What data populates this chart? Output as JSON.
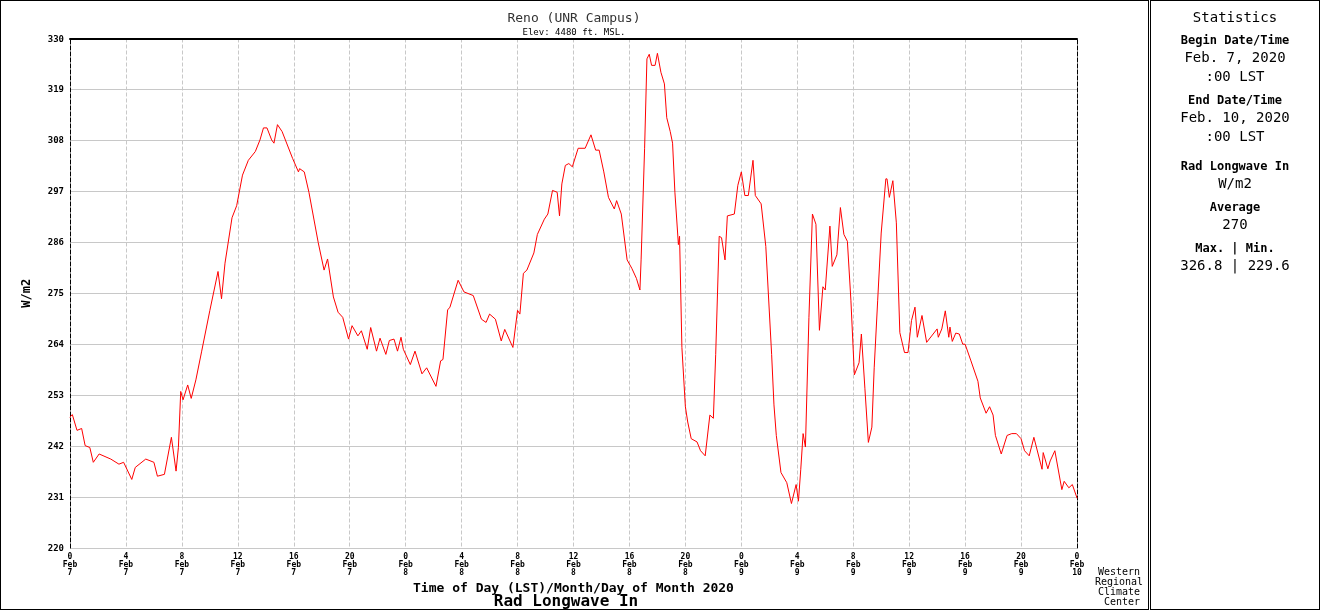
{
  "chart_data": [
    {
      "type": "line",
      "title": "Reno (UNR Campus)",
      "subtitle": "Elev: 4480 ft. MSL.",
      "xlabel": "Time of Day (LST)/Month/Day of Month 2020",
      "ylabel": "W/m2",
      "annotations": [
        "Rad Longwave In",
        "Western Regional Climate Center"
      ],
      "x": [
        "2020-02-07T00:00",
        "2020-02-07T00:10",
        "2020-02-07T00:30",
        "2020-02-07T00:50",
        "2020-02-07T01:05",
        "2020-02-07T01:25",
        "2020-02-07T01:40",
        "2020-02-07T02:05",
        "2020-02-07T02:55",
        "2020-02-07T03:30",
        "2020-02-07T03:50",
        "2020-02-07T04:25",
        "2020-02-07T04:40",
        "2020-02-07T05:25",
        "2020-02-07T06:00",
        "2020-02-07T06:15",
        "2020-02-07T06:45",
        "2020-02-07T07:15",
        "2020-02-07T07:35",
        "2020-02-07T07:45",
        "2020-02-07T07:55",
        "2020-02-07T08:05",
        "2020-02-07T08:25",
        "2020-02-07T08:40",
        "2020-02-07T09:00",
        "2020-02-07T09:25",
        "2020-02-07T10:00",
        "2020-02-07T10:35",
        "2020-02-07T10:50",
        "2020-02-07T11:05",
        "2020-02-07T11:35",
        "2020-02-07T11:55",
        "2020-02-07T12:20",
        "2020-02-07T12:45",
        "2020-02-07T13:15",
        "2020-02-07T13:35",
        "2020-02-07T13:50",
        "2020-02-07T14:05",
        "2020-02-07T14:25",
        "2020-02-07T14:35",
        "2020-02-07T14:50",
        "2020-02-07T15:10",
        "2020-02-07T15:55",
        "2020-02-07T16:20",
        "2020-02-07T16:25",
        "2020-02-07T16:45",
        "2020-02-07T17:05",
        "2020-02-07T17:45",
        "2020-02-07T18:10",
        "2020-02-07T18:25",
        "2020-02-07T18:50",
        "2020-02-07T19:10",
        "2020-02-07T19:30",
        "2020-02-07T19:55",
        "2020-02-07T20:10",
        "2020-02-07T20:35",
        "2020-02-07T20:50",
        "2020-02-07T21:15",
        "2020-02-07T21:30",
        "2020-02-07T21:55",
        "2020-02-07T22:10",
        "2020-02-07T22:35",
        "2020-02-07T22:50",
        "2020-02-07T23:10",
        "2020-02-07T23:25",
        "2020-02-07T23:40",
        "2020-02-07T23:50",
        "2020-02-08T00:20",
        "2020-02-08T00:40",
        "2020-02-08T01:10",
        "2020-02-08T01:30",
        "2020-02-08T02:10",
        "2020-02-08T02:30",
        "2020-02-08T02:40",
        "2020-02-08T03:00",
        "2020-02-08T03:10",
        "2020-02-08T03:45",
        "2020-02-08T04:10",
        "2020-02-08T04:50",
        "2020-02-08T05:25",
        "2020-02-08T05:45",
        "2020-02-08T06:00",
        "2020-02-08T06:25",
        "2020-02-08T06:50",
        "2020-02-08T07:05",
        "2020-02-08T07:40",
        "2020-02-08T08:00",
        "2020-02-08T08:10",
        "2020-02-08T08:25",
        "2020-02-08T08:40",
        "2020-02-08T09:10",
        "2020-02-08T09:25",
        "2020-02-08T09:55",
        "2020-02-08T10:10",
        "2020-02-08T10:30",
        "2020-02-08T10:50",
        "2020-02-08T11:00",
        "2020-02-08T11:10",
        "2020-02-08T11:25",
        "2020-02-08T11:40",
        "2020-02-08T11:55",
        "2020-02-08T12:20",
        "2020-02-08T12:50",
        "2020-02-08T13:15",
        "2020-02-08T13:35",
        "2020-02-08T13:50",
        "2020-02-08T14:10",
        "2020-02-08T14:30",
        "2020-02-08T14:55",
        "2020-02-08T15:05",
        "2020-02-08T15:25",
        "2020-02-08T15:50",
        "2020-02-08T16:10",
        "2020-02-08T16:30",
        "2020-02-08T16:45",
        "2020-02-08T16:50",
        "2020-02-08T17:05",
        "2020-02-08T17:15",
        "2020-02-08T17:25",
        "2020-02-08T17:35",
        "2020-02-08T17:50",
        "2020-02-08T18:00",
        "2020-02-08T18:15",
        "2020-02-08T18:30",
        "2020-02-08T18:40",
        "2020-02-08T18:55",
        "2020-02-08T19:05",
        "2020-02-08T19:15",
        "2020-02-08T19:30",
        "2020-02-08T19:35",
        "2020-02-08T19:45",
        "2020-02-08T20:00",
        "2020-02-08T20:10",
        "2020-02-08T20:25",
        "2020-02-08T20:50",
        "2020-02-08T21:05",
        "2020-02-08T21:25",
        "2020-02-08T21:45",
        "2020-02-08T22:00",
        "2020-02-08T22:10",
        "2020-02-08T22:25",
        "2020-02-08T22:35",
        "2020-02-08T22:50",
        "2020-02-08T23:00",
        "2020-02-08T23:30",
        "2020-02-08T23:45",
        "2020-02-09T00:00",
        "2020-02-09T00:15",
        "2020-02-09T00:30",
        "2020-02-09T00:50",
        "2020-02-09T01:00",
        "2020-02-09T01:25",
        "2020-02-09T01:45",
        "2020-02-09T02:10",
        "2020-02-09T02:20",
        "2020-02-09T02:30",
        "2020-02-09T02:50",
        "2020-02-09T03:15",
        "2020-02-09T03:35",
        "2020-02-09T03:55",
        "2020-02-09T04:05",
        "2020-02-09T04:15",
        "2020-02-09T04:25",
        "2020-02-09T04:35",
        "2020-02-09T04:50",
        "2020-02-09T05:05",
        "2020-02-09T05:20",
        "2020-02-09T05:35",
        "2020-02-09T05:50",
        "2020-02-09T06:00",
        "2020-02-09T06:20",
        "2020-02-09T06:30",
        "2020-02-09T06:50",
        "2020-02-09T07:05",
        "2020-02-09T07:20",
        "2020-02-09T07:35",
        "2020-02-09T07:50",
        "2020-02-09T08:05",
        "2020-02-09T08:25",
        "2020-02-09T08:35",
        "2020-02-09T08:50",
        "2020-02-09T09:05",
        "2020-02-09T09:20",
        "2020-02-09T09:30",
        "2020-02-09T09:45",
        "2020-02-09T10:00",
        "2020-02-09T10:20",
        "2020-02-09T10:25",
        "2020-02-09T10:35",
        "2020-02-09T10:50",
        "2020-02-09T11:05",
        "2020-02-09T11:20",
        "2020-02-09T11:40",
        "2020-02-09T11:55",
        "2020-02-09T12:10",
        "2020-02-09T12:25",
        "2020-02-09T12:35",
        "2020-02-09T12:55",
        "2020-02-09T13:15",
        "2020-02-09T14:00",
        "2020-02-09T14:05",
        "2020-02-09T14:20",
        "2020-02-09T14:35",
        "2020-02-09T14:50",
        "2020-02-09T14:55",
        "2020-02-09T15:05",
        "2020-02-09T15:20",
        "2020-02-09T15:35",
        "2020-02-09T15:50",
        "2020-02-09T16:00",
        "2020-02-09T16:25",
        "2020-02-09T16:55",
        "2020-02-09T17:05",
        "2020-02-09T17:30",
        "2020-02-09T17:45",
        "2020-02-09T18:00",
        "2020-02-09T18:10",
        "2020-02-09T18:35",
        "2020-02-09T19:00",
        "2020-02-09T19:20",
        "2020-02-09T19:40",
        "2020-02-09T20:00",
        "2020-02-09T20:15",
        "2020-02-09T20:35",
        "2020-02-09T20:55",
        "2020-02-09T21:30",
        "2020-02-09T21:35",
        "2020-02-09T21:55",
        "2020-02-09T22:05",
        "2020-02-09T22:25",
        "2020-02-09T22:55",
        "2020-02-09T23:05",
        "2020-02-09T23:25",
        "2020-02-09T23:40",
        "2020-02-10T00:00"
      ],
      "series": [
        {
          "color": "#ff0000",
          "values": [
            248.3,
            248.8,
            245.4,
            245.8,
            242.1,
            241.7,
            238.5,
            240.3,
            239.2,
            238.1,
            238.5,
            234.8,
            237.4,
            239.2,
            238.5,
            235.5,
            235.9,
            243.9,
            236.6,
            241.7,
            253.8,
            252,
            255.2,
            252.3,
            256.3,
            262.5,
            271.3,
            279.7,
            273.8,
            281.5,
            291.3,
            293.9,
            300.5,
            303.7,
            305.6,
            308.1,
            310.7,
            310.7,
            308.1,
            307.4,
            311.4,
            309.9,
            304.1,
            301.2,
            301.9,
            301.2,
            296.8,
            285.9,
            280,
            282.4,
            274.2,
            270.9,
            269.8,
            265.1,
            268,
            265.8,
            266.9,
            262.9,
            267.6,
            262.5,
            265.3,
            261.8,
            264.8,
            265.1,
            262.5,
            265.5,
            262.9,
            259.6,
            262.5,
            257.6,
            258.9,
            254.9,
            260.4,
            260.7,
            271.4,
            272,
            277.8,
            275.3,
            274.5,
            269.4,
            268.7,
            270.5,
            269.4,
            264.7,
            267.2,
            263.3,
            271.3,
            270.5,
            279.3,
            280,
            283.7,
            287.7,
            291,
            292.1,
            297.2,
            296.8,
            291.7,
            298.6,
            302.6,
            303,
            302.3,
            306.3,
            306.3,
            309.2,
            305.9,
            305.9,
            301.2,
            295.7,
            293.2,
            295,
            292.1,
            282.2,
            280.4,
            278.2,
            275.7,
            282.2,
            306.3,
            325.6,
            326.6,
            324.2,
            324.2,
            326.8,
            322.7,
            320.2,
            312.9,
            309.9,
            307.4,
            296.8,
            285.5,
            287.3,
            263.3,
            250.5,
            247.2,
            243.6,
            242.9,
            241,
            239.9,
            248.7,
            248,
            261.8,
            287.3,
            287,
            282.2,
            291.7,
            292.1,
            298.3,
            301.2,
            296.1,
            296.1,
            303.7,
            296.1,
            294.3,
            285.1,
            261.8,
            250.9,
            244.3,
            236.3,
            234.1,
            229.6,
            233.7,
            230.1,
            237,
            244.7,
            241.8,
            269.8,
            292.1,
            289.9,
            267,
            276.4,
            275.7,
            289.5,
            280.8,
            283.3,
            293.5,
            287.7,
            286.2,
            273.5,
            257.4,
            260,
            266.2,
            254.5,
            242.8,
            246.1,
            258.9,
            273.5,
            288,
            299.7,
            299.7,
            295.7,
            299.3,
            290.2,
            266.5,
            262.2,
            262.2,
            269.1,
            272,
            265.5,
            270.2,
            264.4,
            267.3,
            265.5,
            267.3,
            271.2,
            265.5,
            267.7,
            264.6,
            266.4,
            266.2,
            264,
            264,
            260.4,
            256,
            252.4,
            249.1,
            250.5,
            248.7,
            244.3,
            240.3,
            244.3,
            244.7,
            244.7,
            243.6,
            241,
            239.9,
            243.9,
            237,
            240.6,
            237.1,
            238.8,
            241,
            232.6,
            234.4,
            233,
            233.7,
            230.8
          ]
        }
      ],
      "xlim": [
        "2020-02-07T00:00",
        "2020-02-10T00:00"
      ],
      "xticks": [
        {
          "value": "2020-02-07T00:00",
          "label": "0\nFeb\n7"
        },
        {
          "value": "2020-02-07T04:00",
          "label": "4\nFeb\n7"
        },
        {
          "value": "2020-02-07T08:00",
          "label": "8\nFeb\n7"
        },
        {
          "value": "2020-02-07T12:00",
          "label": "12\nFeb\n7"
        },
        {
          "value": "2020-02-07T16:00",
          "label": "16\nFeb\n7"
        },
        {
          "value": "2020-02-07T20:00",
          "label": "20\nFeb\n7"
        },
        {
          "value": "2020-02-08T00:00",
          "label": "0\nFeb\n8"
        },
        {
          "value": "2020-02-08T04:00",
          "label": "4\nFeb\n8"
        },
        {
          "value": "2020-02-08T08:00",
          "label": "8\nFeb\n8"
        },
        {
          "value": "2020-02-08T12:00",
          "label": "12\nFeb\n8"
        },
        {
          "value": "2020-02-08T16:00",
          "label": "16\nFeb\n8"
        },
        {
          "value": "2020-02-08T20:00",
          "label": "20\nFeb\n8"
        },
        {
          "value": "2020-02-09T00:00",
          "label": "0\nFeb\n9"
        },
        {
          "value": "2020-02-09T04:00",
          "label": "4\nFeb\n9"
        },
        {
          "value": "2020-02-09T08:00",
          "label": "8\nFeb\n9"
        },
        {
          "value": "2020-02-09T12:00",
          "label": "12\nFeb\n9"
        },
        {
          "value": "2020-02-09T16:00",
          "label": "16\nFeb\n9"
        },
        {
          "value": "2020-02-09T20:00",
          "label": "20\nFeb\n9"
        },
        {
          "value": "2020-02-10T00:00",
          "label": "0\nFeb\n10"
        }
      ],
      "ylim": [
        220,
        330
      ],
      "yticks": [
        220,
        231,
        242,
        253,
        264,
        275,
        286,
        297,
        308,
        319,
        330
      ],
      "grid": true
    },
    {
      "type": "other",
      "title": "Statistics",
      "annotations": [
        "Begin Date/Time",
        "Feb. 7, 2020\n:00 LST",
        "End Date/Time",
        "Feb. 10, 2020\n:00 LST",
        "Rad Longwave In",
        "W/m2",
        "Average",
        "270",
        "Max. | Min.",
        "326.8 | 229.6"
      ]
    }
  ]
}
